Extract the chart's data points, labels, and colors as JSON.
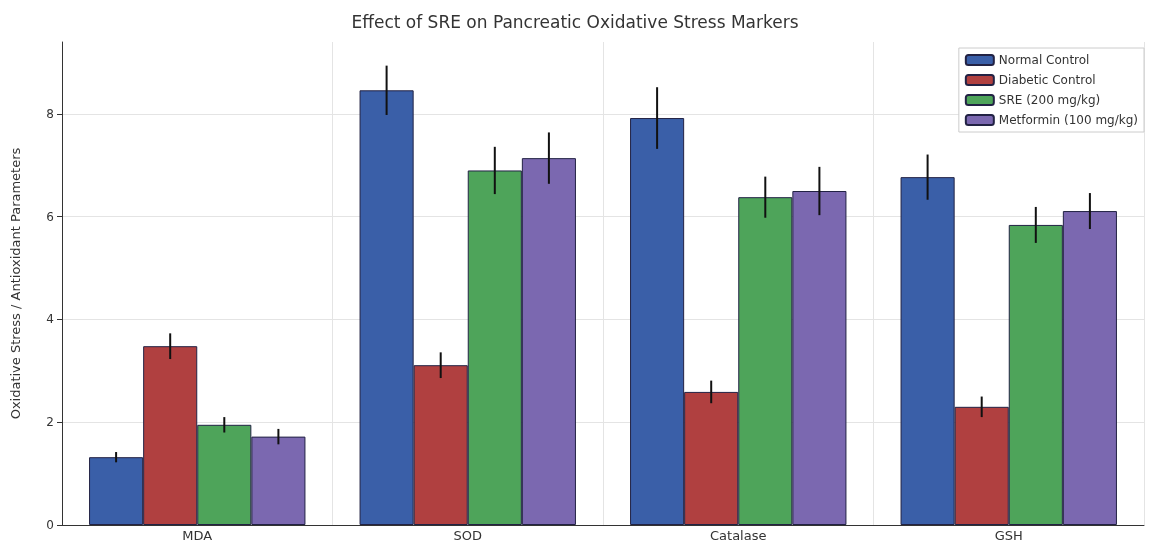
{
  "chart_data": {
    "type": "bar",
    "title": "Effect of SRE on Pancreatic Oxidative Stress Markers",
    "ylabel": "Oxidative Stress / Antioxidant Parameters",
    "categories": [
      "MDA",
      "SOD",
      "Catalase",
      "GSH"
    ],
    "series": [
      {
        "name": "Normal Control",
        "color": "#3a5fa8",
        "values": [
          1.32,
          8.46,
          7.92,
          6.77
        ],
        "errors": [
          0.1,
          0.48,
          0.6,
          0.44
        ]
      },
      {
        "name": "Diabetic Control",
        "color": "#b04040",
        "values": [
          3.48,
          3.11,
          2.59,
          2.3
        ],
        "errors": [
          0.25,
          0.25,
          0.22,
          0.2
        ]
      },
      {
        "name": "SRE (200 mg/kg)",
        "color": "#4ea45a",
        "values": [
          1.95,
          6.9,
          6.38,
          5.84
        ],
        "errors": [
          0.15,
          0.46,
          0.4,
          0.35
        ]
      },
      {
        "name": "Metformin (100 mg/kg)",
        "color": "#7b68b0",
        "values": [
          1.72,
          7.14,
          6.5,
          6.11
        ],
        "errors": [
          0.15,
          0.5,
          0.47,
          0.35
        ]
      }
    ],
    "ylim": [
      0,
      9.4
    ],
    "yticks": [
      0,
      2,
      4,
      6,
      8
    ],
    "grid": true,
    "legend": "top right"
  }
}
